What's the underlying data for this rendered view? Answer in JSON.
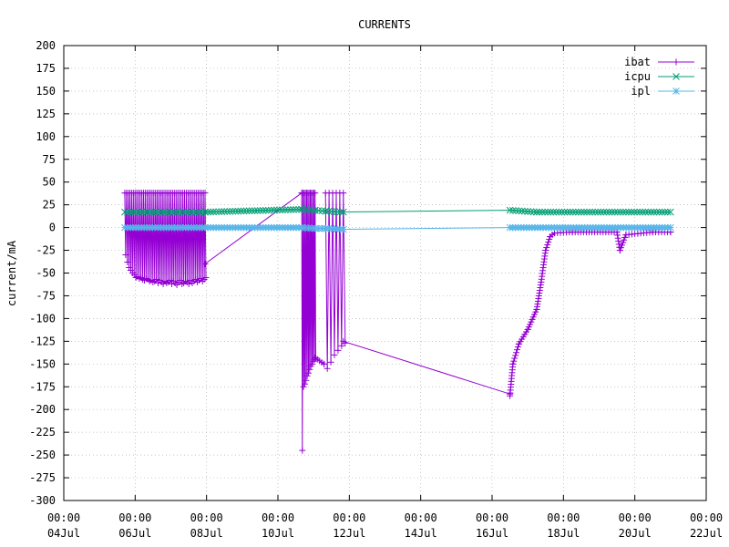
{
  "chart_data": {
    "type": "line",
    "title": "CURRENTS",
    "xlabel": "",
    "ylabel": "current/mA",
    "ylim": [
      -300,
      200
    ],
    "yticks": [
      200,
      175,
      150,
      125,
      100,
      75,
      50,
      25,
      0,
      -25,
      -50,
      -75,
      -100,
      -125,
      -150,
      -175,
      -200,
      -225,
      -250,
      -275,
      -300
    ],
    "xlim": [
      "2024-07-04T00:00",
      "2024-07-22T00:00"
    ],
    "xticks": [
      {
        "x": "2024-07-04T00:00",
        "time": "00:00",
        "date": "04Jul"
      },
      {
        "x": "2024-07-06T00:00",
        "time": "00:00",
        "date": "06Jul"
      },
      {
        "x": "2024-07-08T00:00",
        "time": "00:00",
        "date": "08Jul"
      },
      {
        "x": "2024-07-10T00:00",
        "time": "00:00",
        "date": "10Jul"
      },
      {
        "x": "2024-07-12T00:00",
        "time": "00:00",
        "date": "12Jul"
      },
      {
        "x": "2024-07-14T00:00",
        "time": "00:00",
        "date": "14Jul"
      },
      {
        "x": "2024-07-16T00:00",
        "time": "00:00",
        "date": "16Jul"
      },
      {
        "x": "2024-07-18T00:00",
        "time": "00:00",
        "date": "18Jul"
      },
      {
        "x": "2024-07-20T00:00",
        "time": "00:00",
        "date": "20Jul"
      },
      {
        "x": "2024-07-22T00:00",
        "time": "00:00",
        "date": "22Jul"
      }
    ],
    "grid": true,
    "legend": "top-right",
    "series": [
      {
        "name": "ibat",
        "color": "#9400d3",
        "marker": "plus",
        "segments": [
          {
            "type": "oscillating",
            "x_start": "2024-07-05T17:00",
            "x_end": "2024-07-07T23:00",
            "count": 48,
            "high": 38,
            "low_values": [
              -30,
              -38,
              -44,
              -47,
              -50,
              -52,
              -55,
              -54,
              -56,
              -55,
              -57,
              -58,
              -56,
              -57,
              -59,
              -58,
              -60,
              -59,
              -57,
              -61,
              -58,
              -60,
              -62,
              -59,
              -61,
              -60,
              -58,
              -62,
              -59,
              -61,
              -63,
              -60,
              -58,
              -62,
              -61,
              -59,
              -60,
              -62,
              -58,
              -61,
              -59,
              -57,
              -60,
              -58,
              -56,
              -59,
              -57,
              -55
            ]
          },
          {
            "type": "points",
            "points": [
              [
                "2024-07-07T23:00",
                -40
              ],
              [
                "2024-07-10T16:00",
                38
              ]
            ]
          },
          {
            "type": "oscillating",
            "x_start": "2024-07-10T16:00",
            "x_end": "2024-07-11T01:00",
            "count": 12,
            "high": 38,
            "low_values": [
              -245,
              -175,
              -172,
              -168,
              -163,
              -160,
              -156,
              -152,
              -150,
              -147,
              -145,
              -143
            ]
          },
          {
            "type": "points",
            "points": [
              [
                "2024-07-11T01:00",
                -143
              ],
              [
                "2024-07-11T07:00",
                -150
              ]
            ]
          },
          {
            "type": "oscillating",
            "x_start": "2024-07-11T08:00",
            "x_end": "2024-07-11T20:00",
            "count": 6,
            "high": 38,
            "low_values": [
              -155,
              -148,
              -140,
              -135,
              -130,
              -127
            ]
          },
          {
            "type": "points",
            "points": [
              [
                "2024-07-11T20:00",
                -125
              ],
              [
                "2024-07-16T12:00",
                -183
              ]
            ]
          },
          {
            "type": "points",
            "points": [
              [
                "2024-07-16T12:00",
                -185
              ],
              [
                "2024-07-16T14:00",
                -150
              ],
              [
                "2024-07-16T18:00",
                -128
              ],
              [
                "2024-07-17T00:00",
                -112
              ],
              [
                "2024-07-17T06:00",
                -90
              ],
              [
                "2024-07-17T09:00",
                -60
              ],
              [
                "2024-07-17T12:00",
                -25
              ],
              [
                "2024-07-17T15:00",
                -10
              ],
              [
                "2024-07-17T18:00",
                -6
              ],
              [
                "2024-07-18T06:00",
                -5
              ],
              [
                "2024-07-19T12:00",
                -5
              ],
              [
                "2024-07-19T14:00",
                -25
              ],
              [
                "2024-07-19T18:00",
                -8
              ],
              [
                "2024-07-20T12:00",
                -5
              ],
              [
                "2024-07-21T00:00",
                -5
              ]
            ]
          }
        ]
      },
      {
        "name": "icpu",
        "color": "#009e73",
        "marker": "cross",
        "points": [
          [
            "2024-07-05T17:00",
            17
          ],
          [
            "2024-07-07T23:00",
            17
          ],
          [
            "2024-07-10T16:00",
            20
          ],
          [
            "2024-07-11T01:00",
            19
          ],
          [
            "2024-07-11T08:00",
            18
          ],
          [
            "2024-07-11T20:00",
            17
          ],
          [
            "2024-07-16T12:00",
            19
          ],
          [
            "2024-07-17T06:00",
            17
          ],
          [
            "2024-07-21T00:00",
            17
          ]
        ]
      },
      {
        "name": "ipl",
        "color": "#56b4e9",
        "marker": "star",
        "points": [
          [
            "2024-07-05T17:00",
            0
          ],
          [
            "2024-07-07T23:00",
            0
          ],
          [
            "2024-07-10T16:00",
            0
          ],
          [
            "2024-07-11T01:00",
            -1
          ],
          [
            "2024-07-11T08:00",
            -1
          ],
          [
            "2024-07-11T20:00",
            -2
          ],
          [
            "2024-07-16T12:00",
            0
          ],
          [
            "2024-07-21T00:00",
            0
          ]
        ]
      }
    ]
  }
}
